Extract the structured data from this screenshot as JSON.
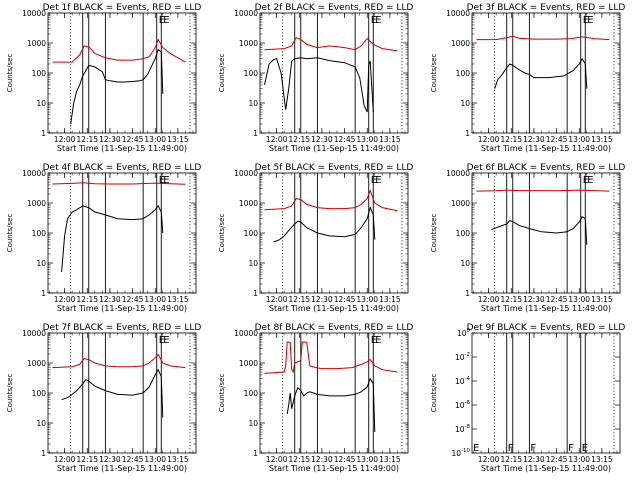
{
  "shared": {
    "xlabel": "Start Time (11-Sep-15 11:49:00)",
    "ylabel": "Counts/sec",
    "xticks": [
      "12:00",
      "12:15",
      "12:30",
      "12:45",
      "13:00",
      "13:15"
    ],
    "colors": {
      "events": "#000000",
      "lld": "#cc0000",
      "frame": "#000000"
    }
  },
  "chart_data": [
    {
      "type": "line",
      "title": "Det 1f BLACK = Events, RED = LLD",
      "log_y": true,
      "yticks": [
        "1",
        "10",
        "100",
        "1000",
        "10000"
      ],
      "ylim": [
        1,
        10000
      ],
      "xlim": [
        "11:49",
        "13:27"
      ],
      "dotted_lines": [
        "12:04",
        "13:23"
      ],
      "solid_lines": [
        "12:12",
        "12:16",
        "12:27",
        "12:52",
        "13:01",
        "13:04"
      ],
      "flag_letters": [
        "E",
        "E"
      ],
      "series": [
        {
          "key": "events",
          "color": "#000000",
          "x": [
            "12:04",
            "12:06",
            "12:08",
            "12:10",
            "12:12",
            "12:14",
            "12:16",
            "12:20",
            "12:25",
            "12:27",
            "12:30",
            "12:35",
            "12:40",
            "12:45",
            "12:50",
            "12:52",
            "12:55",
            "13:00",
            "13:02",
            "13:04",
            "13:05"
          ],
          "values": [
            2,
            10,
            25,
            40,
            80,
            120,
            180,
            160,
            110,
            60,
            55,
            50,
            50,
            52,
            55,
            60,
            90,
            300,
            600,
            500,
            20
          ]
        },
        {
          "key": "lld",
          "color": "#cc0000",
          "x": [
            "11:52",
            "12:05",
            "12:10",
            "12:13",
            "12:16",
            "12:20",
            "12:27",
            "12:35",
            "12:45",
            "12:52",
            "12:56",
            "13:00",
            "13:02",
            "13:05",
            "13:10",
            "13:15",
            "13:20"
          ],
          "values": [
            230,
            230,
            400,
            800,
            750,
            450,
            320,
            270,
            270,
            300,
            350,
            700,
            1300,
            700,
            450,
            320,
            230
          ]
        }
      ]
    },
    {
      "type": "line",
      "title": "Det 2f BLACK = Events, RED = LLD",
      "log_y": true,
      "yticks": [
        "1",
        "10",
        "100",
        "1000",
        "10000"
      ],
      "ylim": [
        1,
        10000
      ],
      "xlim": [
        "11:49",
        "13:27"
      ],
      "dotted_lines": [
        "12:04",
        "13:23"
      ],
      "solid_lines": [
        "12:12",
        "12:16",
        "12:27",
        "12:52",
        "13:01",
        "13:04"
      ],
      "flag_letters": [
        "E",
        "E"
      ],
      "series": [
        {
          "key": "events",
          "color": "#000000",
          "x": [
            "11:52",
            "11:55",
            "11:58",
            "12:00",
            "12:03",
            "12:06",
            "12:08",
            "12:10",
            "12:12",
            "12:16",
            "12:20",
            "12:27",
            "12:35",
            "12:45",
            "12:52",
            "12:55",
            "12:58",
            "13:00",
            "13:01",
            "13:02",
            "13:04"
          ],
          "values": [
            40,
            200,
            280,
            300,
            100,
            6,
            30,
            250,
            300,
            320,
            300,
            320,
            260,
            220,
            160,
            70,
            8,
            5,
            180,
            250,
            5
          ]
        },
        {
          "key": "lld",
          "color": "#cc0000",
          "x": [
            "11:52",
            "12:05",
            "12:10",
            "12:13",
            "12:16",
            "12:20",
            "12:27",
            "12:35",
            "12:45",
            "12:52",
            "12:56",
            "13:00",
            "13:04",
            "13:10",
            "13:15",
            "13:20"
          ],
          "values": [
            600,
            650,
            800,
            1500,
            1300,
            900,
            700,
            800,
            700,
            600,
            800,
            1400,
            900,
            650,
            600,
            550
          ]
        }
      ]
    },
    {
      "type": "line",
      "title": "Det 3f BLACK = Events, RED = LLD",
      "log_y": true,
      "yticks": [
        "1",
        "10",
        "100",
        "1000",
        "10000"
      ],
      "ylim": [
        1,
        10000
      ],
      "xlim": [
        "11:49",
        "13:27"
      ],
      "dotted_lines": [
        "12:04",
        "13:23"
      ],
      "solid_lines": [
        "12:12",
        "12:16",
        "12:27",
        "12:52",
        "13:01",
        "13:04"
      ],
      "flag_letters": [
        "E",
        "E"
      ],
      "series": [
        {
          "key": "events",
          "color": "#000000",
          "x": [
            "12:04",
            "12:06",
            "12:09",
            "12:12",
            "12:14",
            "12:16",
            "12:20",
            "12:24",
            "12:27",
            "12:30",
            "12:35",
            "12:40",
            "12:45",
            "12:50",
            "12:53",
            "12:56",
            "13:00",
            "13:02",
            "13:04",
            "13:05"
          ],
          "values": [
            30,
            60,
            90,
            150,
            200,
            180,
            130,
            100,
            90,
            70,
            70,
            70,
            75,
            80,
            100,
            120,
            200,
            300,
            200,
            30
          ]
        },
        {
          "key": "lld",
          "color": "#cc0000",
          "x": [
            "11:52",
            "12:05",
            "12:12",
            "12:16",
            "12:20",
            "12:30",
            "12:45",
            "12:55",
            "13:02",
            "13:10",
            "13:20"
          ],
          "values": [
            1300,
            1300,
            1500,
            1700,
            1450,
            1350,
            1350,
            1400,
            1600,
            1400,
            1300
          ]
        }
      ]
    },
    {
      "type": "line",
      "title": "Det 4f BLACK = Events, RED = LLD",
      "log_y": true,
      "yticks": [
        "1",
        "10",
        "100",
        "1000",
        "10000"
      ],
      "ylim": [
        1,
        10000
      ],
      "xlim": [
        "11:49",
        "13:27"
      ],
      "dotted_lines": [
        "12:04",
        "13:23"
      ],
      "solid_lines": [
        "12:12",
        "12:16",
        "12:27",
        "12:52",
        "13:01",
        "13:04"
      ],
      "flag_letters": [
        "E",
        "E"
      ],
      "series": [
        {
          "key": "events",
          "color": "#000000",
          "x": [
            "11:58",
            "12:00",
            "12:02",
            "12:05",
            "12:08",
            "12:12",
            "12:16",
            "12:20",
            "12:27",
            "12:35",
            "12:45",
            "12:52",
            "12:56",
            "13:00",
            "13:02",
            "13:04",
            "13:05"
          ],
          "values": [
            5,
            80,
            300,
            500,
            600,
            800,
            700,
            500,
            400,
            300,
            280,
            300,
            400,
            600,
            800,
            500,
            100
          ]
        },
        {
          "key": "lld",
          "color": "#cc0000",
          "x": [
            "11:52",
            "12:05",
            "12:12",
            "12:20",
            "12:30",
            "12:45",
            "13:00",
            "13:10",
            "13:20"
          ],
          "values": [
            4300,
            4500,
            4700,
            4400,
            4300,
            4300,
            4600,
            4400,
            4200
          ]
        }
      ]
    },
    {
      "type": "line",
      "title": "Det 5f BLACK = Events, RED = LLD",
      "log_y": true,
      "yticks": [
        "1",
        "10",
        "100",
        "1000",
        "10000"
      ],
      "ylim": [
        1,
        10000
      ],
      "xlim": [
        "11:49",
        "13:27"
      ],
      "dotted_lines": [
        "12:04",
        "13:23"
      ],
      "solid_lines": [
        "12:12",
        "12:16",
        "12:27",
        "12:52",
        "13:01",
        "13:04"
      ],
      "flag_letters": [
        "E",
        "E"
      ],
      "series": [
        {
          "key": "events",
          "color": "#000000",
          "x": [
            "11:58",
            "12:02",
            "12:05",
            "12:08",
            "12:12",
            "12:14",
            "12:16",
            "12:20",
            "12:27",
            "12:35",
            "12:45",
            "12:52",
            "12:56",
            "13:00",
            "13:02",
            "13:04",
            "13:05"
          ],
          "values": [
            50,
            60,
            80,
            120,
            200,
            250,
            230,
            150,
            100,
            80,
            75,
            90,
            150,
            300,
            700,
            400,
            60
          ]
        },
        {
          "key": "lld",
          "color": "#cc0000",
          "x": [
            "11:52",
            "12:05",
            "12:10",
            "12:13",
            "12:16",
            "12:20",
            "12:27",
            "12:35",
            "12:45",
            "12:52",
            "12:56",
            "13:00",
            "13:02",
            "13:05",
            "13:10",
            "13:20"
          ],
          "values": [
            600,
            650,
            800,
            1400,
            1300,
            900,
            700,
            650,
            650,
            700,
            900,
            1400,
            2600,
            1000,
            700,
            550
          ]
        }
      ]
    },
    {
      "type": "line",
      "title": "Det 6f BLACK = Events, RED = LLD",
      "log_y": true,
      "yticks": [
        "1",
        "10",
        "100",
        "1000",
        "10000"
      ],
      "ylim": [
        1,
        10000
      ],
      "xlim": [
        "11:49",
        "13:27"
      ],
      "dotted_lines": [
        "12:04",
        "13:23"
      ],
      "solid_lines": [
        "12:12",
        "12:16",
        "12:27",
        "12:52",
        "13:01",
        "13:04"
      ],
      "flag_letters": [
        "E",
        "E"
      ],
      "series": [
        {
          "key": "events",
          "color": "#000000",
          "x": [
            "12:02",
            "12:05",
            "12:08",
            "12:12",
            "12:14",
            "12:16",
            "12:20",
            "12:27",
            "12:35",
            "12:45",
            "12:52",
            "12:56",
            "13:00",
            "13:02",
            "13:04",
            "13:05"
          ],
          "values": [
            130,
            150,
            170,
            200,
            260,
            240,
            180,
            140,
            110,
            100,
            110,
            140,
            230,
            350,
            300,
            40
          ]
        },
        {
          "key": "lld",
          "color": "#cc0000",
          "x": [
            "11:52",
            "12:05",
            "12:12",
            "12:20",
            "12:30",
            "12:45",
            "13:00",
            "13:10",
            "13:20"
          ],
          "values": [
            2500,
            2550,
            2700,
            2600,
            2600,
            2550,
            2700,
            2600,
            2500
          ]
        }
      ]
    },
    {
      "type": "line",
      "title": "Det 7f BLACK = Events, RED = LLD",
      "log_y": true,
      "yticks": [
        "1",
        "10",
        "100",
        "1000",
        "10000"
      ],
      "ylim": [
        1,
        10000
      ],
      "xlim": [
        "11:49",
        "13:27"
      ],
      "dotted_lines": [
        "12:04",
        "13:23"
      ],
      "solid_lines": [
        "12:12",
        "12:16",
        "12:27",
        "12:52",
        "13:01",
        "13:04"
      ],
      "flag_letters": [
        "E",
        "E"
      ],
      "series": [
        {
          "key": "events",
          "color": "#000000",
          "x": [
            "11:58",
            "12:02",
            "12:05",
            "12:08",
            "12:12",
            "12:14",
            "12:16",
            "12:20",
            "12:27",
            "12:35",
            "12:45",
            "12:52",
            "12:56",
            "13:00",
            "13:02",
            "13:04",
            "13:05"
          ],
          "values": [
            60,
            70,
            90,
            120,
            200,
            280,
            250,
            170,
            120,
            90,
            85,
            100,
            160,
            400,
            600,
            350,
            15
          ]
        },
        {
          "key": "lld",
          "color": "#cc0000",
          "x": [
            "11:52",
            "12:05",
            "12:10",
            "12:13",
            "12:16",
            "12:20",
            "12:27",
            "12:35",
            "12:45",
            "12:52",
            "12:56",
            "13:00",
            "13:02",
            "13:05",
            "13:10",
            "13:20"
          ],
          "values": [
            700,
            750,
            900,
            1400,
            1300,
            1000,
            800,
            750,
            750,
            800,
            1000,
            1500,
            1900,
            1000,
            800,
            700
          ]
        }
      ]
    },
    {
      "type": "line",
      "title": "Det 8f BLACK = Events, RED = LLD",
      "log_y": true,
      "yticks": [
        "1",
        "10",
        "100",
        "1000",
        "10000"
      ],
      "ylim": [
        1,
        10000
      ],
      "xlim": [
        "11:49",
        "13:27"
      ],
      "dotted_lines": [
        "12:04",
        "13:23"
      ],
      "solid_lines": [
        "12:12",
        "12:16",
        "12:27",
        "12:52",
        "13:01",
        "13:04"
      ],
      "flag_letters": [
        "E",
        "E"
      ],
      "series": [
        {
          "key": "events",
          "color": "#000000",
          "x": [
            "12:07",
            "12:08",
            "12:09",
            "12:10",
            "12:12",
            "12:14",
            "12:16",
            "12:18",
            "12:20",
            "12:22",
            "12:27",
            "12:35",
            "12:45",
            "12:52",
            "12:56",
            "13:00",
            "13:02",
            "13:04",
            "13:05"
          ],
          "values": [
            20,
            40,
            100,
            30,
            80,
            150,
            120,
            80,
            100,
            110,
            90,
            80,
            80,
            90,
            110,
            160,
            300,
            200,
            5
          ]
        },
        {
          "key": "lld",
          "color": "#cc0000",
          "x": [
            "11:52",
            "12:05",
            "12:06",
            "12:07",
            "12:08",
            "12:09",
            "12:10",
            "12:11",
            "12:12",
            "12:16",
            "12:17",
            "12:18",
            "12:19",
            "12:20",
            "12:22",
            "12:26",
            "12:30",
            "12:40",
            "12:50",
            "12:56",
            "13:00",
            "13:02",
            "13:05",
            "13:10",
            "13:20"
          ],
          "values": [
            450,
            500,
            800,
            5000,
            5000,
            4800,
            600,
            500,
            1000,
            1200,
            5000,
            5000,
            5000,
            4800,
            800,
            700,
            650,
            650,
            700,
            900,
            1100,
            1300,
            800,
            600,
            500
          ]
        }
      ]
    },
    {
      "type": "line",
      "title": "Det 9f BLACK = Events, RED = LLD",
      "log_y": true,
      "yticks_log": true,
      "yticks": [
        "10",
        "10",
        "10",
        "10",
        "10",
        "10"
      ],
      "ytick_exponents": [
        "0",
        "-2",
        "-4",
        "-6",
        "-8",
        "-10"
      ],
      "ylim": [
        1e-10,
        1
      ],
      "xlim": [
        "11:49",
        "13:27"
      ],
      "dotted_lines": [
        "12:04",
        "13:23"
      ],
      "solid_lines": [
        "12:12",
        "12:16",
        "12:27",
        "12:52",
        "13:01",
        "13:04"
      ],
      "flag_letters": [
        "F",
        "F",
        "F",
        "E"
      ],
      "series": []
    }
  ]
}
